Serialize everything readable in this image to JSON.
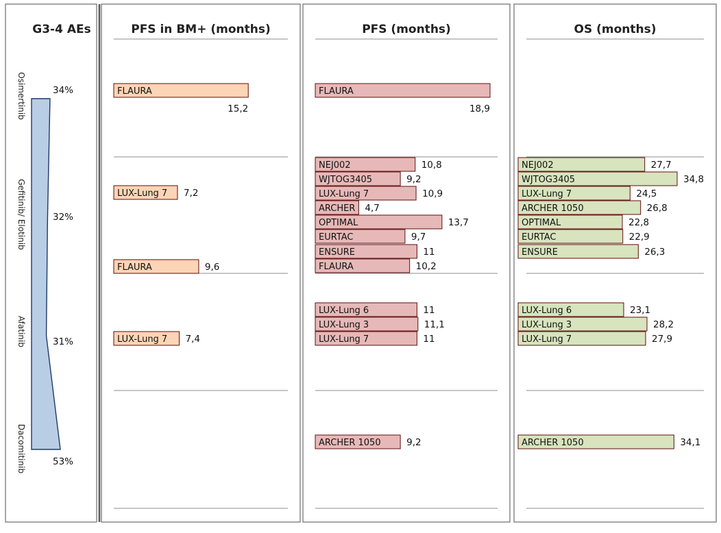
{
  "chart_data": {
    "type": "bar",
    "drugs": [
      "Osimertinib",
      "Gefitinib/ Elotinib",
      "Afatinib",
      "Dacomitinib"
    ],
    "toxicity": {
      "title": "G3-4 AEs",
      "values": [
        "34%",
        "32%",
        "31%",
        "53%"
      ]
    },
    "panels": [
      {
        "key": "pfs_bm",
        "title": "PFS in BM+ (months)",
        "xmax": 18.9,
        "groups": [
          {
            "drug": "Osimertinib",
            "entries": [
              {
                "trial": "FLAURA",
                "value": 15.2,
                "label": "15,2"
              }
            ]
          },
          {
            "drug": "Gefitinib/ Elotinib",
            "entries": [
              {
                "trial": "LUX-Lung 7",
                "value": 7.2,
                "label": "7,2"
              },
              {
                "trial": "FLAURA",
                "value": 9.6,
                "label": "9,6"
              }
            ]
          },
          {
            "drug": "Afatinib",
            "entries": [
              {
                "trial": "LUX-Lung 7",
                "value": 7.4,
                "label": "7,4"
              }
            ]
          },
          {
            "drug": "Dacomitinib",
            "entries": []
          }
        ]
      },
      {
        "key": "pfs",
        "title": "PFS (months)",
        "xmax": 18.9,
        "groups": [
          {
            "drug": "Osimertinib",
            "entries": [
              {
                "trial": "FLAURA",
                "value": 18.9,
                "label": "18,9"
              }
            ]
          },
          {
            "drug": "Gefitinib/ Elotinib",
            "entries": [
              {
                "trial": "NEJ002",
                "value": 10.8,
                "label": "10,8"
              },
              {
                "trial": "WJTOG3405",
                "value": 9.2,
                "label": "9,2"
              },
              {
                "trial": "LUX-Lung 7",
                "value": 10.9,
                "label": "10,9"
              },
              {
                "trial": "ARCHER",
                "value": 4.7,
                "label": "4,7"
              },
              {
                "trial": "OPTIMAL",
                "value": 13.7,
                "label": "13,7"
              },
              {
                "trial": "EURTAC",
                "value": 9.7,
                "label": "9,7"
              },
              {
                "trial": "ENSURE",
                "value": 11,
                "label": "11"
              },
              {
                "trial": "FLAURA",
                "value": 10.2,
                "label": "10,2"
              }
            ]
          },
          {
            "drug": "Afatinib",
            "entries": [
              {
                "trial": "LUX-Lung 6",
                "value": 11,
                "label": "11"
              },
              {
                "trial": "LUX-Lung 3",
                "value": 11.1,
                "label": "11,1"
              },
              {
                "trial": "LUX-Lung 7",
                "value": 11,
                "label": "11"
              }
            ]
          },
          {
            "drug": "Dacomitinib",
            "entries": [
              {
                "trial": "ARCHER 1050",
                "value": 9.2,
                "label": "9,2"
              }
            ]
          }
        ]
      },
      {
        "key": "os",
        "title": "OS (months)",
        "xmax": 34.8,
        "groups": [
          {
            "drug": "Osimertinib",
            "entries": []
          },
          {
            "drug": "Gefitinib/ Elotinib",
            "entries": [
              {
                "trial": "NEJ002",
                "value": 27.7,
                "label": "27,7"
              },
              {
                "trial": "WJTOG3405",
                "value": 34.8,
                "label": "34,8"
              },
              {
                "trial": "LUX-Lung 7",
                "value": 24.5,
                "label": "24,5"
              },
              {
                "trial": "ARCHER 1050",
                "value": 26.8,
                "label": "26,8"
              },
              {
                "trial": "OPTIMAL",
                "value": 22.8,
                "label": "22,8"
              },
              {
                "trial": "EURTAC",
                "value": 22.9,
                "label": "22,9"
              },
              {
                "trial": "ENSURE",
                "value": 26.3,
                "label": "26,3"
              }
            ]
          },
          {
            "drug": "Afatinib",
            "entries": [
              {
                "trial": "LUX-Lung 6",
                "value": 23.1,
                "label": "23,1"
              },
              {
                "trial": "LUX-Lung 3",
                "value": 28.2,
                "label": "28,2"
              },
              {
                "trial": "LUX-Lung 7",
                "value": 27.9,
                "label": "27,9"
              }
            ]
          },
          {
            "drug": "Dacomitinib",
            "entries": [
              {
                "trial": "ARCHER 1050",
                "value": 34.1,
                "label": "34,1"
              }
            ]
          }
        ]
      }
    ],
    "colors": {
      "pfs_bm_fill": "#fbd5b5",
      "pfs_fill": "#e6b9b8",
      "os_fill": "#d7e4bd",
      "bar_stroke": "#6b1f1f",
      "toxicity_fill": "#b9cde5",
      "toxicity_stroke": "#1f3864"
    }
  }
}
